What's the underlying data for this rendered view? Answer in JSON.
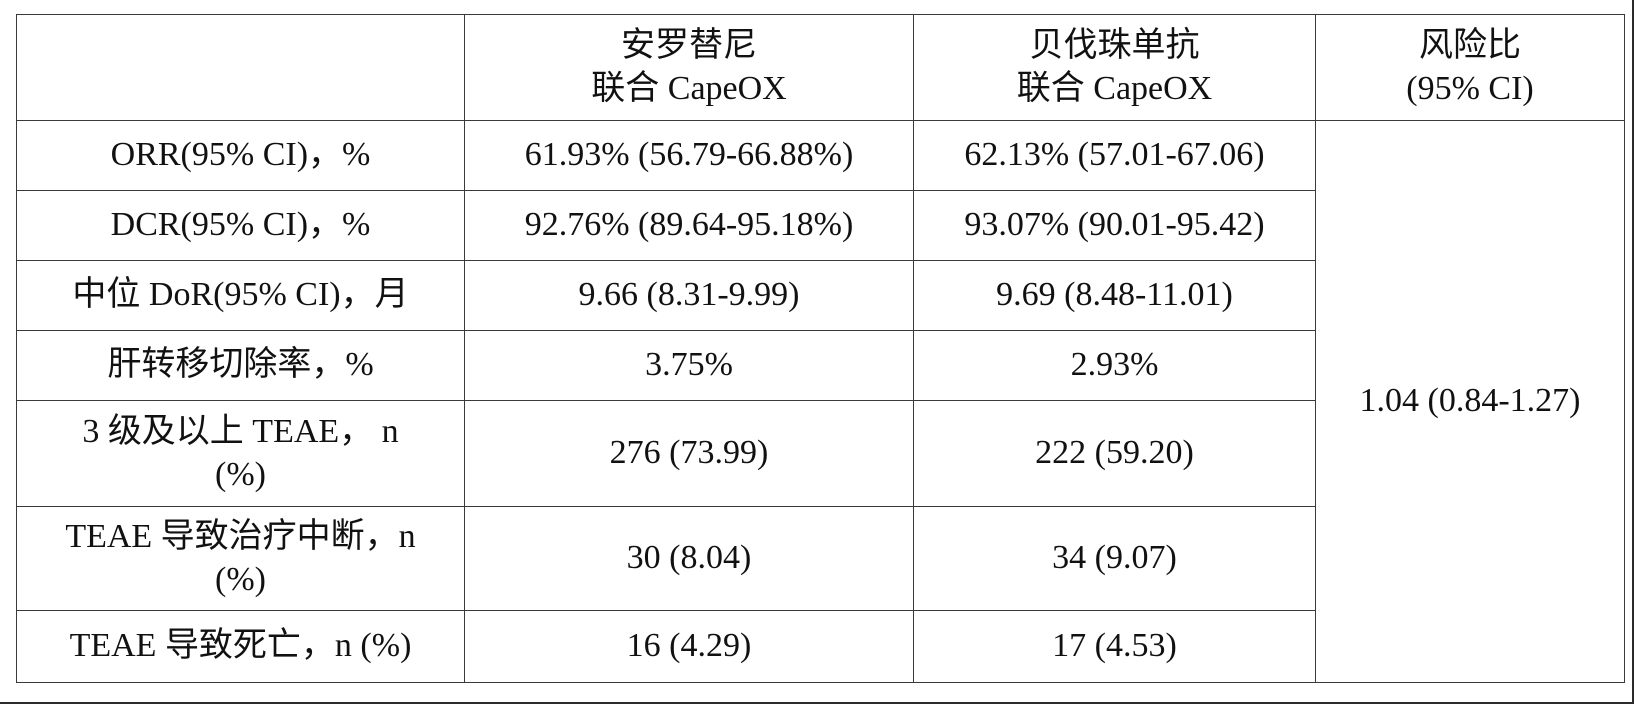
{
  "table": {
    "header": {
      "blank": "",
      "arm_a": "安罗替尼\n联合 CapeOX",
      "arm_b": "贝伐珠单抗\n联合 CapeOX",
      "hazard": "风险比\n(95% CI)"
    },
    "rows": [
      {
        "label": "ORR(95% CI)，%",
        "arm_a": "61.93% (56.79-66.88%)",
        "arm_b": "62.13% (57.01-67.06)"
      },
      {
        "label": "DCR(95% CI)，%",
        "arm_a": "92.76% (89.64-95.18%)",
        "arm_b": "93.07% (90.01-95.42)"
      },
      {
        "label": "中位 DoR(95% CI)，月",
        "arm_a": "9.66 (8.31-9.99)",
        "arm_b": "9.69 (8.48-11.01)"
      },
      {
        "label": "肝转移切除率，%",
        "arm_a": "3.75%",
        "arm_b": "2.93%"
      },
      {
        "label": "3 级及以上 TEAE，      n\n(%)",
        "arm_a": "276 (73.99)",
        "arm_b": "222 (59.20)"
      },
      {
        "label": "TEAE 导致治疗中断，n\n(%)",
        "arm_a": "30 (8.04)",
        "arm_b": "34 (9.07)"
      },
      {
        "label": "TEAE 导致死亡，n (%)",
        "arm_a": "16 (4.29)",
        "arm_b": "17 (4.53)"
      }
    ],
    "hazard_ratio": "1.04 (0.84-1.27)"
  }
}
